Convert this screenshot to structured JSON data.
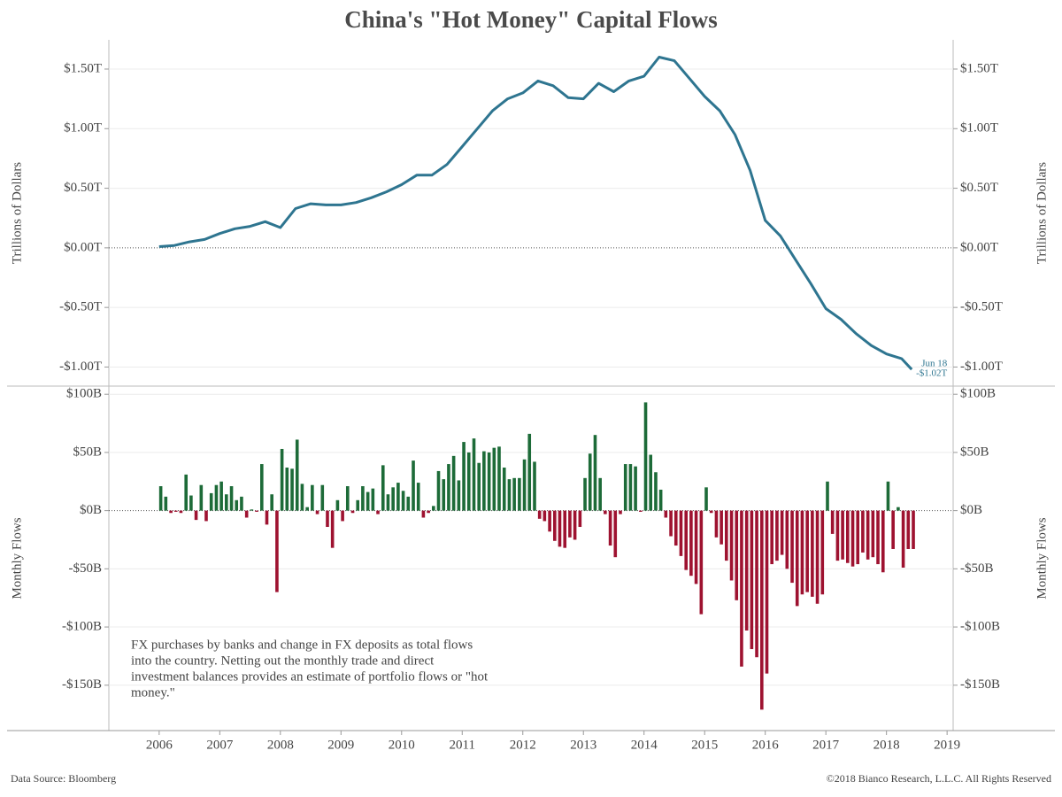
{
  "title": "China's \"Hot Money\" Capital Flows",
  "source": "Data Source: Bloomberg",
  "copyright": "©2018 Bianco Research, L.L.C. All Rights Reserved",
  "chart_data": [
    {
      "type": "line",
      "y_label": "Trillions of Dollars",
      "color": "#2e7590",
      "x": [
        2006,
        2006.25,
        2006.5,
        2006.75,
        2007,
        2007.25,
        2007.5,
        2007.75,
        2008,
        2008.25,
        2008.5,
        2008.75,
        2009,
        2009.25,
        2009.5,
        2009.75,
        2010,
        2010.25,
        2010.5,
        2010.75,
        2011,
        2011.25,
        2011.5,
        2011.75,
        2012,
        2012.25,
        2012.5,
        2012.75,
        2013,
        2013.25,
        2013.5,
        2013.75,
        2014,
        2014.25,
        2014.5,
        2014.75,
        2015,
        2015.25,
        2015.5,
        2015.75,
        2016,
        2016.25,
        2016.5,
        2016.75,
        2017,
        2017.25,
        2017.5,
        2017.75,
        2018,
        2018.25,
        2018.417
      ],
      "values": [
        0.01,
        0.02,
        0.05,
        0.07,
        0.12,
        0.16,
        0.18,
        0.22,
        0.17,
        0.33,
        0.37,
        0.36,
        0.36,
        0.38,
        0.42,
        0.47,
        0.53,
        0.61,
        0.61,
        0.7,
        0.85,
        1.0,
        1.15,
        1.25,
        1.3,
        1.4,
        1.36,
        1.26,
        1.25,
        1.38,
        1.31,
        1.4,
        1.44,
        1.6,
        1.57,
        1.42,
        1.27,
        1.15,
        0.95,
        0.65,
        0.23,
        0.1,
        -0.1,
        -0.3,
        -0.51,
        -0.6,
        -0.72,
        -0.82,
        -0.89,
        -0.93,
        -1.02
      ],
      "xlim": [
        2005.17,
        2019.1
      ],
      "ylim": [
        -1.16,
        1.745
      ],
      "yticks": [
        {
          "value": -1,
          "label": "-$1.00T"
        },
        {
          "value": -0.5,
          "label": "-$0.50T"
        },
        {
          "value": 0,
          "label": "$0.00T"
        },
        {
          "value": 0.5,
          "label": "$0.50T"
        },
        {
          "value": 1,
          "label": "$1.00T"
        },
        {
          "value": 1.5,
          "label": "$1.50T"
        }
      ],
      "end_label": [
        "Jun 18",
        "-$1.02T"
      ],
      "grid": true
    },
    {
      "type": "bar",
      "y_label": "Monthly Flows",
      "positive_color": "#1d6b38",
      "negative_color": "#9e1230",
      "x": [
        2006,
        2006.083,
        2006.167,
        2006.25,
        2006.333,
        2006.417,
        2006.5,
        2006.583,
        2006.667,
        2006.75,
        2006.833,
        2006.917,
        2007,
        2007.083,
        2007.167,
        2007.25,
        2007.333,
        2007.417,
        2007.5,
        2007.583,
        2007.667,
        2007.75,
        2007.833,
        2007.917,
        2008,
        2008.083,
        2008.167,
        2008.25,
        2008.333,
        2008.417,
        2008.5,
        2008.583,
        2008.667,
        2008.75,
        2008.833,
        2008.917,
        2009,
        2009.083,
        2009.167,
        2009.25,
        2009.333,
        2009.417,
        2009.5,
        2009.583,
        2009.667,
        2009.75,
        2009.833,
        2009.917,
        2010,
        2010.083,
        2010.167,
        2010.25,
        2010.333,
        2010.417,
        2010.5,
        2010.583,
        2010.667,
        2010.75,
        2010.833,
        2010.917,
        2011,
        2011.083,
        2011.167,
        2011.25,
        2011.333,
        2011.417,
        2011.5,
        2011.583,
        2011.667,
        2011.75,
        2011.833,
        2011.917,
        2012,
        2012.083,
        2012.167,
        2012.25,
        2012.333,
        2012.417,
        2012.5,
        2012.583,
        2012.667,
        2012.75,
        2012.833,
        2012.917,
        2013,
        2013.083,
        2013.167,
        2013.25,
        2013.333,
        2013.417,
        2013.5,
        2013.583,
        2013.667,
        2013.75,
        2013.833,
        2013.917,
        2014,
        2014.083,
        2014.167,
        2014.25,
        2014.333,
        2014.417,
        2014.5,
        2014.583,
        2014.667,
        2014.75,
        2014.833,
        2014.917,
        2015,
        2015.083,
        2015.167,
        2015.25,
        2015.333,
        2015.417,
        2015.5,
        2015.583,
        2015.667,
        2015.75,
        2015.833,
        2015.917,
        2016,
        2016.083,
        2016.167,
        2016.25,
        2016.333,
        2016.417,
        2016.5,
        2016.583,
        2016.667,
        2016.75,
        2016.833,
        2016.917,
        2017,
        2017.083,
        2017.167,
        2017.25,
        2017.333,
        2017.417,
        2017.5,
        2017.583,
        2017.667,
        2017.75,
        2017.833,
        2017.917,
        2018,
        2018.083,
        2018.167,
        2018.25,
        2018.333,
        2018.417
      ],
      "values": [
        21,
        12,
        -2,
        -1,
        -2,
        31,
        13,
        -8,
        22,
        -9,
        15,
        22,
        25,
        14,
        21,
        9,
        12,
        -6,
        1,
        -1,
        40,
        -12,
        14,
        -70,
        53,
        37,
        36,
        61,
        23,
        3,
        22,
        -3,
        22,
        -14,
        -32,
        9,
        -9,
        21,
        -2,
        9,
        21,
        16,
        19,
        -3,
        39,
        14,
        20,
        24,
        17,
        12,
        43,
        24,
        -6,
        -2,
        4,
        34,
        27,
        40,
        47,
        26,
        59,
        50,
        62,
        41,
        51,
        50,
        54,
        55,
        37,
        27,
        28,
        28,
        44,
        66,
        42,
        -7,
        -9,
        -18,
        -26,
        -31,
        -32,
        -23,
        -25,
        -14,
        28,
        49,
        65,
        28,
        -3,
        -30,
        -40,
        -3,
        40,
        40,
        38,
        -1,
        93,
        48,
        33,
        18,
        -6,
        -22,
        -30,
        -39,
        -51,
        -56,
        -63,
        -89,
        20,
        -2,
        -23,
        -29,
        -43,
        -60,
        -77,
        -134,
        -103,
        -119,
        -126,
        -171,
        -140,
        -46,
        -43,
        -38,
        -50,
        -62,
        -82,
        -72,
        -70,
        -74,
        -80,
        -72,
        25,
        -20,
        -43,
        -42,
        -45,
        -48,
        -46,
        -36,
        -42,
        -40,
        -46,
        -53,
        25,
        -33,
        3,
        -49,
        -33,
        -33
      ],
      "xlim": [
        2005.17,
        2019.1
      ],
      "xticks": [
        2006,
        2007,
        2008,
        2009,
        2010,
        2011,
        2012,
        2013,
        2014,
        2015,
        2016,
        2017,
        2018,
        2019
      ],
      "ylim": [
        -189,
        107
      ],
      "yticks": [
        {
          "value": -150,
          "label": "-$150B"
        },
        {
          "value": -100,
          "label": "-$100B"
        },
        {
          "value": -50,
          "label": "-$50B"
        },
        {
          "value": 0,
          "label": "$0B"
        },
        {
          "value": 50,
          "label": "$50B"
        },
        {
          "value": 100,
          "label": "$100B"
        }
      ],
      "note": [
        "FX purchases by banks and change in FX deposits as total flows",
        "into the country. Netting out the monthly trade and direct",
        "investment balances provides an estimate of portfolio flows or \"hot",
        "money.\""
      ],
      "grid": true
    }
  ]
}
